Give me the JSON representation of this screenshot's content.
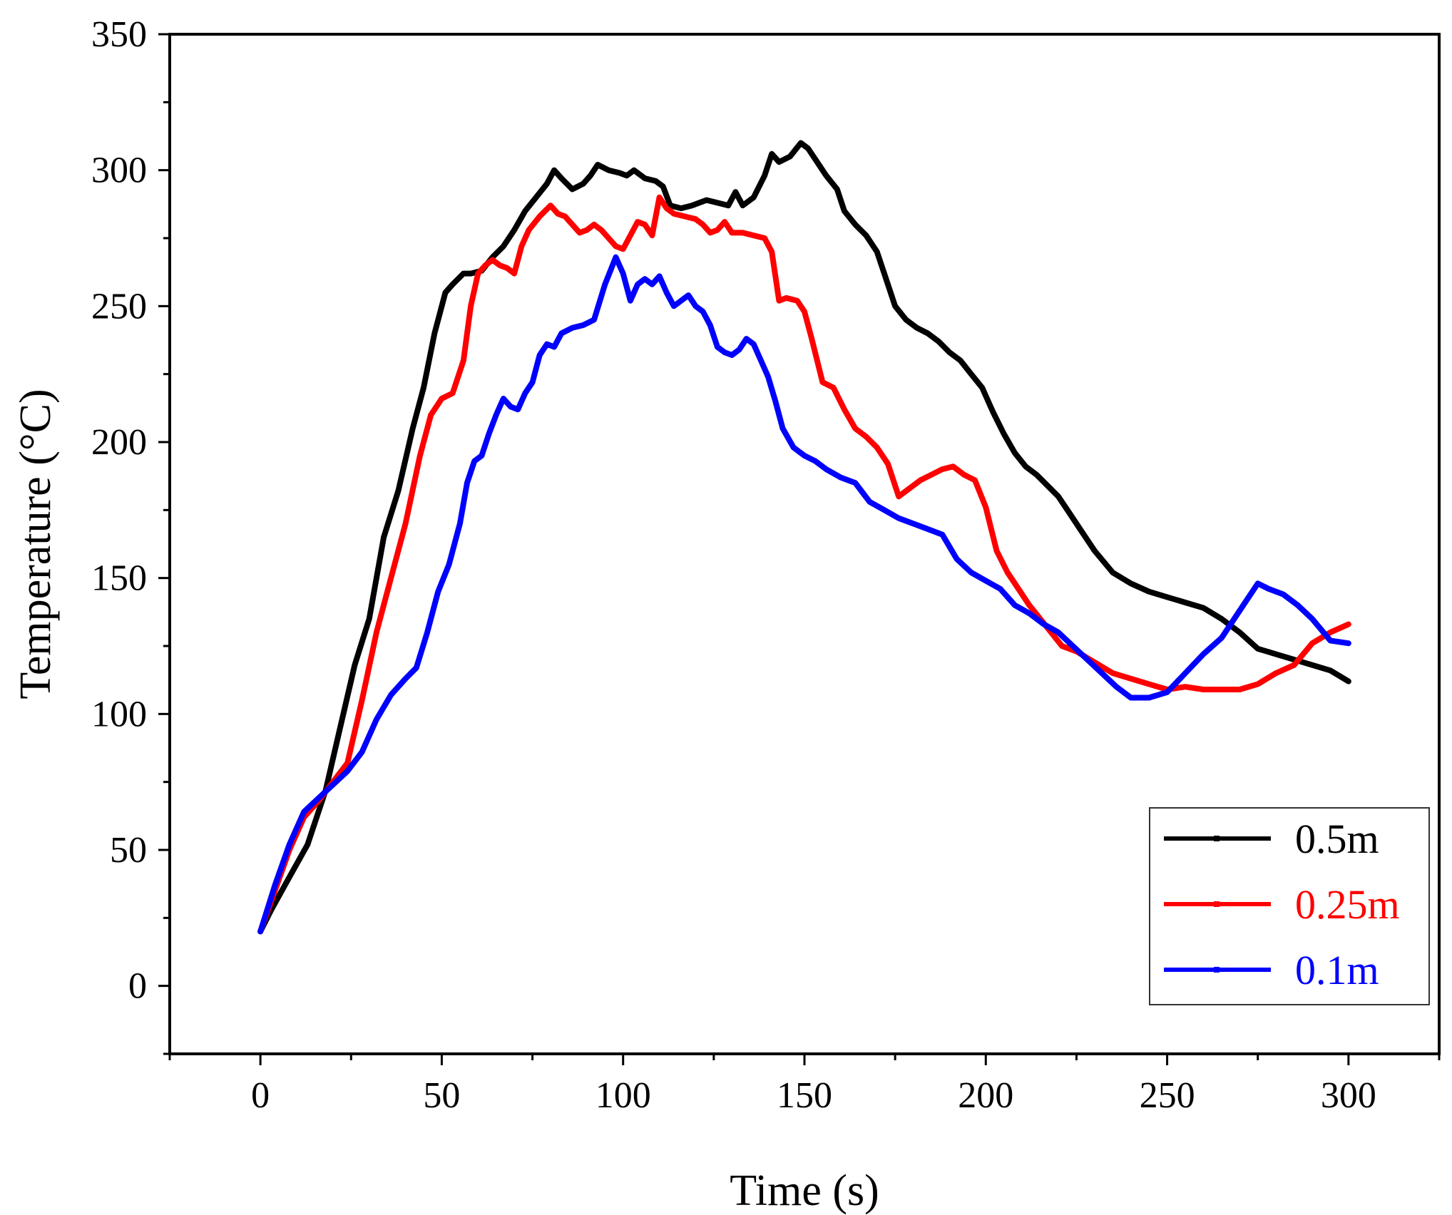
{
  "chart_data": {
    "type": "line",
    "title": "",
    "xlabel": "Time (s)",
    "ylabel": "Temperature (°C)",
    "xlim": [
      -25,
      325
    ],
    "ylim": [
      -25,
      350
    ],
    "x_ticks": [
      0,
      50,
      100,
      150,
      200,
      250,
      300
    ],
    "x_tick_labels": [
      "0",
      "50",
      "100",
      "150",
      "200",
      "250",
      "300"
    ],
    "y_ticks": [
      0,
      50,
      100,
      150,
      200,
      250,
      300,
      350
    ],
    "y_tick_labels": [
      "0",
      "50",
      "100",
      "150",
      "200",
      "250",
      "300",
      "350"
    ],
    "grid": false,
    "legend_position": "bottom-right",
    "series": [
      {
        "name": "0.5m",
        "color": "#000000",
        "x": [
          0,
          3,
          8,
          13,
          18,
          22,
          26,
          30,
          34,
          38,
          42,
          45,
          48,
          51,
          53,
          56,
          58,
          61,
          64,
          67,
          70,
          73,
          76,
          79,
          81,
          83,
          86,
          89,
          91,
          93,
          96,
          99,
          101,
          103,
          106,
          109,
          111,
          113,
          116,
          119,
          121,
          123,
          126,
          129,
          131,
          133,
          136,
          139,
          141,
          143,
          146,
          149,
          151,
          154,
          156,
          159,
          161,
          164,
          167,
          170,
          173,
          175,
          178,
          181,
          184,
          187,
          190,
          193,
          196,
          199,
          202,
          205,
          208,
          211,
          214,
          217,
          220,
          223,
          226,
          230,
          235,
          240,
          245,
          250,
          255,
          260,
          265,
          270,
          275,
          280,
          285,
          290,
          295,
          300
        ],
        "values": [
          20,
          28,
          40,
          52,
          72,
          95,
          118,
          135,
          165,
          182,
          205,
          220,
          240,
          255,
          258,
          262,
          262,
          263,
          268,
          272,
          278,
          285,
          290,
          295,
          300,
          297,
          293,
          295,
          298,
          302,
          300,
          299,
          298,
          300,
          297,
          296,
          294,
          287,
          286,
          287,
          288,
          289,
          288,
          287,
          292,
          287,
          290,
          298,
          306,
          303,
          305,
          310,
          308,
          302,
          298,
          293,
          285,
          280,
          276,
          270,
          258,
          250,
          245,
          242,
          240,
          237,
          233,
          230,
          225,
          220,
          211,
          203,
          196,
          191,
          188,
          184,
          180,
          174,
          168,
          160,
          152,
          148,
          145,
          143,
          141,
          139,
          135,
          130,
          124,
          122,
          120,
          118,
          116,
          112
        ]
      },
      {
        "name": "0.25m",
        "color": "#ff0000",
        "x": [
          0,
          4,
          8,
          12,
          16,
          20,
          24,
          28,
          32,
          36,
          40,
          44,
          47,
          50,
          53,
          56,
          58,
          60,
          62,
          64,
          66,
          68,
          70,
          72,
          74,
          77,
          80,
          82,
          84,
          86,
          88,
          90,
          92,
          94,
          96,
          98,
          100,
          102,
          104,
          106,
          108,
          110,
          112,
          114,
          117,
          120,
          122,
          124,
          126,
          128,
          130,
          133,
          136,
          139,
          141,
          143,
          145,
          148,
          150,
          152,
          155,
          158,
          161,
          164,
          167,
          170,
          173,
          176,
          179,
          182,
          185,
          188,
          191,
          194,
          197,
          200,
          203,
          206,
          209,
          212,
          215,
          218,
          221,
          225,
          230,
          235,
          240,
          245,
          250,
          255,
          260,
          265,
          270,
          275,
          280,
          285,
          290,
          295,
          300
        ],
        "values": [
          20,
          35,
          50,
          62,
          68,
          75,
          82,
          105,
          130,
          150,
          170,
          195,
          210,
          216,
          218,
          230,
          250,
          262,
          265,
          267,
          265,
          264,
          262,
          272,
          278,
          283,
          287,
          284,
          283,
          280,
          277,
          278,
          280,
          278,
          275,
          272,
          271,
          276,
          281,
          280,
          276,
          290,
          286,
          284,
          283,
          282,
          280,
          277,
          278,
          281,
          277,
          277,
          276,
          275,
          270,
          252,
          253,
          252,
          248,
          238,
          222,
          220,
          212,
          205,
          202,
          198,
          192,
          180,
          183,
          186,
          188,
          190,
          191,
          188,
          186,
          176,
          160,
          152,
          146,
          140,
          135,
          130,
          125,
          123,
          119,
          115,
          113,
          111,
          109,
          110,
          109,
          109,
          109,
          111,
          115,
          118,
          126,
          130,
          133
        ]
      },
      {
        "name": "0.1m",
        "color": "#0000ff",
        "x": [
          0,
          4,
          8,
          12,
          16,
          20,
          24,
          28,
          32,
          36,
          40,
          43,
          46,
          49,
          52,
          55,
          57,
          59,
          61,
          63,
          65,
          67,
          69,
          71,
          73,
          75,
          77,
          79,
          81,
          83,
          86,
          89,
          92,
          95,
          98,
          100,
          102,
          104,
          106,
          108,
          110,
          112,
          114,
          116,
          118,
          120,
          122,
          124,
          126,
          128,
          130,
          132,
          134,
          136,
          138,
          140,
          142,
          144,
          147,
          150,
          153,
          156,
          160,
          164,
          168,
          172,
          176,
          180,
          184,
          188,
          192,
          196,
          200,
          204,
          208,
          212,
          216,
          220,
          224,
          228,
          232,
          236,
          240,
          245,
          250,
          255,
          260,
          265,
          270,
          275,
          278,
          282,
          286,
          290,
          295,
          300
        ],
        "values": [
          20,
          37,
          52,
          64,
          69,
          74,
          79,
          86,
          98,
          107,
          113,
          117,
          130,
          145,
          155,
          170,
          185,
          193,
          195,
          203,
          210,
          216,
          213,
          212,
          218,
          222,
          232,
          236,
          235,
          240,
          242,
          243,
          245,
          258,
          268,
          262,
          252,
          258,
          260,
          258,
          261,
          255,
          250,
          252,
          254,
          250,
          248,
          243,
          235,
          233,
          232,
          234,
          238,
          236,
          230,
          224,
          215,
          205,
          198,
          195,
          193,
          190,
          187,
          185,
          178,
          175,
          172,
          170,
          168,
          166,
          157,
          152,
          149,
          146,
          140,
          137,
          133,
          130,
          125,
          120,
          115,
          110,
          106,
          106,
          108,
          115,
          122,
          128,
          138,
          148,
          146,
          144,
          140,
          135,
          127,
          126
        ]
      }
    ]
  }
}
